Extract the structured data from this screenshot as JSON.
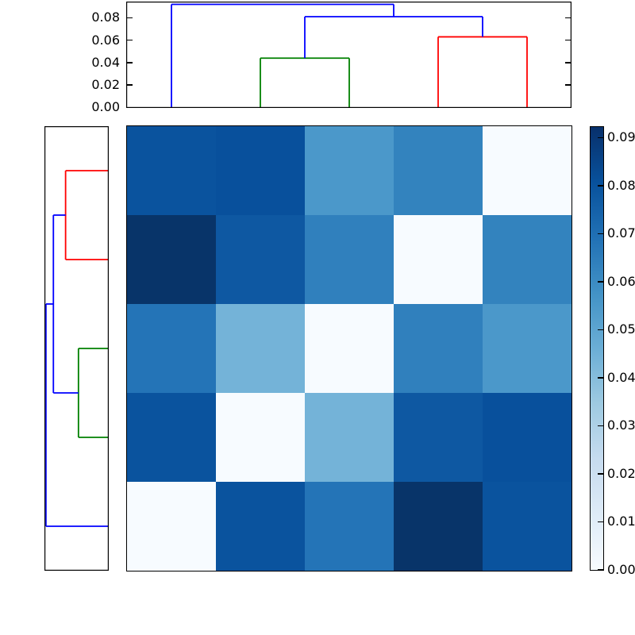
{
  "figure": {
    "background": "#ffffff",
    "axis_color": "#000000"
  },
  "chart_data": {
    "type": "heatmap",
    "subtype": "clustermap-with-dendrograms",
    "title": "",
    "colormap": "Blues",
    "vmin": 0.0,
    "vmax": 0.0922,
    "grid": false,
    "matrix_rows_top_to_bottom": [
      [
        0.08,
        0.081,
        0.055,
        0.063,
        0.0
      ],
      [
        0.092,
        0.078,
        0.064,
        0.0,
        0.063
      ],
      [
        0.068,
        0.044,
        0.0,
        0.064,
        0.055
      ],
      [
        0.08,
        0.0,
        0.044,
        0.078,
        0.081
      ],
      [
        0.0,
        0.08,
        0.068,
        0.092,
        0.08
      ]
    ],
    "cell_colors": [
      [
        "#0a539e",
        "#08509c",
        "#4b98ca",
        "#3383be",
        "#f7fbff"
      ],
      [
        "#083469",
        "#0e58a2",
        "#3080bd",
        "#f7fbff",
        "#3383be"
      ],
      [
        "#2474b7",
        "#74b3d8",
        "#f7fbff",
        "#3080bd",
        "#4b98ca"
      ],
      [
        "#0a539e",
        "#f7fbff",
        "#74b3d8",
        "#0e58a2",
        "#08509c"
      ],
      [
        "#f7fbff",
        "#0a539e",
        "#2474b7",
        "#083469",
        "#0a539e"
      ]
    ],
    "top_dendrogram": {
      "orientation": "top",
      "ylim": [
        0.0,
        0.0949
      ],
      "axis_tick_labels": [
        "0.00",
        "0.02",
        "0.04",
        "0.06",
        "0.08"
      ],
      "axis_tick_values": [
        0.0,
        0.02,
        0.04,
        0.06,
        0.08
      ],
      "links": [
        {
          "color": "#008000",
          "x1": 2.0,
          "h1": 0.0,
          "x2": 3.0,
          "h2": 0.0,
          "height": 0.044
        },
        {
          "color": "#ff0000",
          "x1": 4.0,
          "h1": 0.0,
          "x2": 5.0,
          "h2": 0.0,
          "height": 0.063
        },
        {
          "color": "#0000ff",
          "x1": 2.5,
          "h1": 0.044,
          "x2": 4.5,
          "h2": 0.063,
          "height": 0.081
        },
        {
          "color": "#0000ff",
          "x1": 1.0,
          "h1": 0.0,
          "x2": 3.5,
          "h2": 0.081,
          "height": 0.092
        }
      ]
    },
    "left_dendrogram": {
      "orientation": "left",
      "xlim": [
        0.0,
        0.0949
      ],
      "links": [
        {
          "color": "#ff0000",
          "x1": 1.0,
          "h1": 0.0,
          "x2": 2.0,
          "h2": 0.0,
          "height": 0.063
        },
        {
          "color": "#008000",
          "x1": 3.0,
          "h1": 0.0,
          "x2": 4.0,
          "h2": 0.0,
          "height": 0.044
        },
        {
          "color": "#0000ff",
          "x1": 1.5,
          "h1": 0.063,
          "x2": 3.5,
          "h2": 0.044,
          "height": 0.081
        },
        {
          "color": "#0000ff",
          "x1": 2.5,
          "h1": 0.081,
          "x2": 5.0,
          "h2": 0.0,
          "height": 0.092
        }
      ]
    },
    "colorbar": {
      "tick_labels": [
        "0.00",
        "0.01",
        "0.02",
        "0.03",
        "0.04",
        "0.05",
        "0.06",
        "0.07",
        "0.08",
        "0.09"
      ],
      "tick_values": [
        0.0,
        0.01,
        0.02,
        0.03,
        0.04,
        0.05,
        0.06,
        0.07,
        0.08,
        0.09
      ],
      "gradient_stops": [
        "#f7fbff",
        "#deebf7",
        "#c6dbef",
        "#9ecae1",
        "#6baed6",
        "#4292c6",
        "#2171b5",
        "#08519c",
        "#08306b"
      ]
    }
  }
}
